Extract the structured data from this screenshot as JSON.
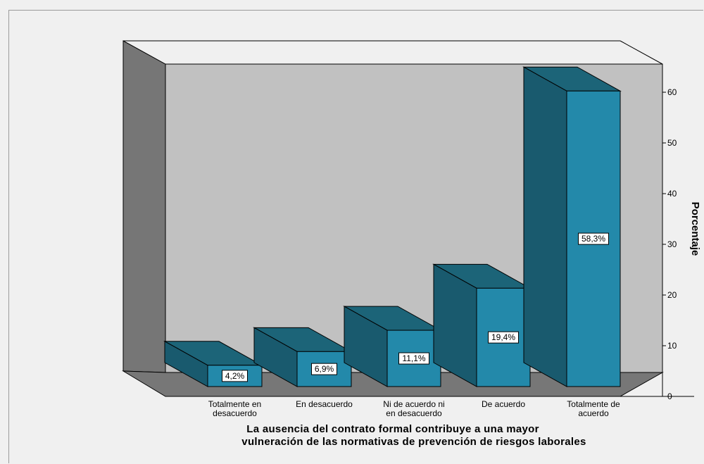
{
  "chart_data": {
    "type": "bar",
    "style": "3d",
    "categories": [
      [
        "Totalmente en",
        "desacuerdo"
      ],
      [
        "En desacuerdo"
      ],
      [
        "Ni de acuerdo ni",
        "en desacuerdo"
      ],
      [
        "De acuerdo"
      ],
      [
        "Totalmente de",
        "acuerdo"
      ]
    ],
    "values": [
      4.2,
      6.9,
      11.1,
      19.4,
      58.3
    ],
    "value_labels": [
      "4,2%",
      "6,9%",
      "11,1%",
      "19,4%",
      "58,3%"
    ],
    "ylabel": "Porcentaje",
    "xlabel": [
      "La ausencia del contrato formal contribuye a una mayor",
      "vulneración de las normativas de prevención de riesgos laborales"
    ],
    "ylim": [
      0,
      60
    ],
    "yticks": [
      0,
      10,
      20,
      30,
      40,
      50,
      60
    ],
    "y_axis_side": "right",
    "grid": false,
    "legend": "none",
    "colors": {
      "bar_front": "#2389aa",
      "bar_side": "#195a6e",
      "bar_top": "#1c6478",
      "back_wall": "#c1c1c1",
      "left_wall": "#767676",
      "floor": "#777777",
      "background": "#f0f0f0"
    }
  }
}
